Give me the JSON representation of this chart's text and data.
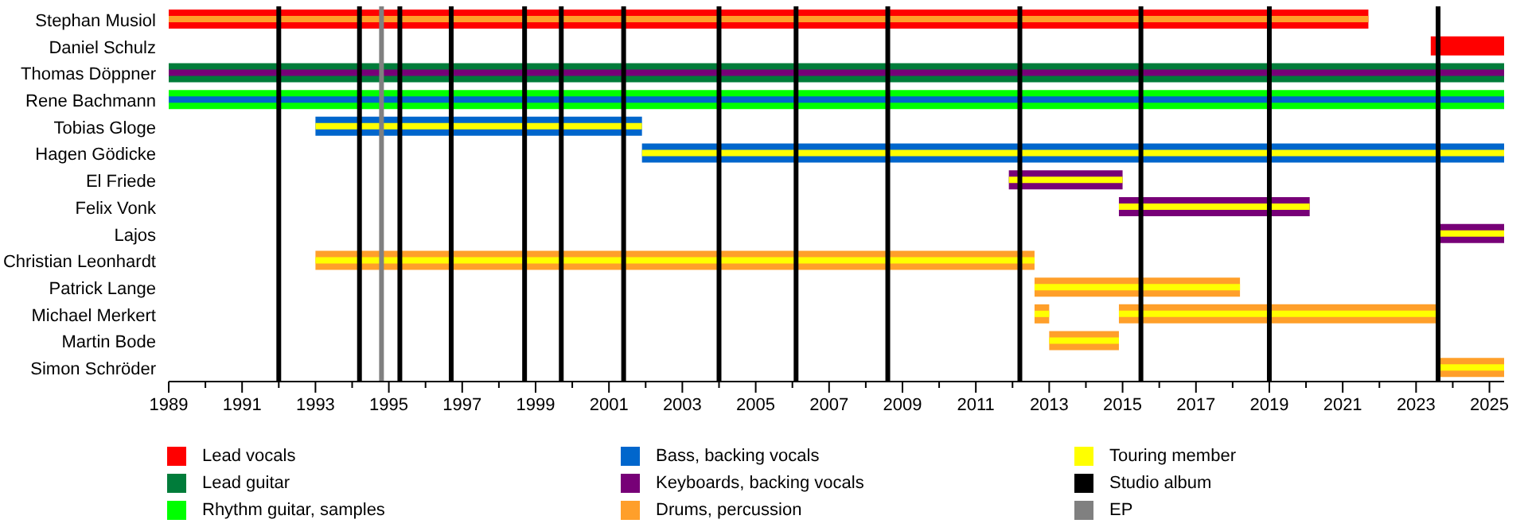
{
  "chart_data": {
    "type": "bar",
    "orientation": "horizontal",
    "categories": [
      "Stephan Musiol",
      "Daniel Schulz",
      "Thomas Döppner",
      "Rene Bachmann",
      "Tobias Gloge",
      "Hagen Gödicke",
      "El Friede",
      "Felix Vonk",
      "Lajos",
      "Christian Leonhardt",
      "Patrick Lange",
      "Michael Merkert",
      "Martin Bode",
      "Simon Schröder"
    ],
    "xlim": [
      1989,
      2025.4
    ],
    "xticks": [
      1989,
      {
        "value": 1990,
        "label": null
      },
      1991,
      {
        "value": 1992,
        "label": null
      },
      1993,
      {
        "value": 1994,
        "label": null
      },
      1995,
      {
        "value": 1996,
        "label": null
      },
      1997,
      {
        "value": 1998,
        "label": null
      },
      1999,
      {
        "value": 2000,
        "label": null
      },
      2001,
      {
        "value": 2002,
        "label": null
      },
      2003,
      {
        "value": 2004,
        "label": null
      },
      2005,
      {
        "value": 2006,
        "label": null
      },
      2007,
      {
        "value": 2008,
        "label": null
      },
      2009,
      {
        "value": 2010,
        "label": null
      },
      2011,
      {
        "value": 2012,
        "label": null
      },
      2013,
      {
        "value": 2014,
        "label": null
      },
      2015,
      {
        "value": 2016,
        "label": null
      },
      2017,
      {
        "value": 2018,
        "label": null
      },
      2019,
      {
        "value": 2020,
        "label": null
      },
      2021,
      {
        "value": 2022,
        "label": null
      },
      2023,
      {
        "value": 2024,
        "label": null
      },
      2025
    ],
    "series": [
      {
        "name": "Lead vocals",
        "color": "#ff0000",
        "base": [
          1989,
          2023.4,
          null,
          null,
          null,
          null,
          null,
          null,
          null,
          null,
          null,
          null,
          null,
          null
        ],
        "values": [
          32.7,
          2.0,
          null,
          null,
          null,
          null,
          null,
          null,
          null,
          null,
          null,
          null,
          null,
          null
        ]
      },
      {
        "name": "Lead guitar",
        "color": "#007c3a",
        "base": [
          null,
          null,
          1989,
          null,
          null,
          null,
          null,
          null,
          null,
          null,
          null,
          null,
          null,
          null
        ],
        "values": [
          null,
          null,
          36.4,
          null,
          null,
          null,
          null,
          null,
          null,
          null,
          null,
          null,
          null,
          null
        ]
      },
      {
        "name": "Rhythm guitar, samples",
        "color": "#00ff00",
        "base": [
          null,
          null,
          null,
          1989,
          null,
          null,
          null,
          null,
          null,
          null,
          null,
          null,
          null,
          null
        ],
        "values": [
          null,
          null,
          null,
          36.4,
          null,
          null,
          null,
          null,
          null,
          null,
          null,
          null,
          null,
          null
        ]
      },
      {
        "name": "Bass, backing vocals",
        "color": "#0066cc",
        "base": [
          null,
          null,
          null,
          null,
          1993,
          2001.9,
          null,
          null,
          null,
          null,
          null,
          null,
          null,
          null
        ],
        "values": [
          null,
          null,
          null,
          null,
          8.9,
          23.5,
          null,
          null,
          null,
          null,
          null,
          null,
          null,
          null
        ]
      },
      {
        "name": "Keyboards, backing vocals",
        "color": "#770077",
        "base": [
          null,
          null,
          null,
          null,
          null,
          null,
          2011.9,
          2014.9,
          2023.6,
          null,
          null,
          null,
          null,
          null
        ],
        "values": [
          null,
          null,
          null,
          null,
          null,
          null,
          3.1,
          5.2,
          1.8,
          null,
          null,
          null,
          null,
          null
        ]
      },
      {
        "name": "Drums, percussion",
        "color": "#ff9f2a",
        "base": [
          null,
          null,
          null,
          null,
          null,
          null,
          null,
          null,
          null,
          1993,
          2012.6,
          2012.6,
          2013,
          2023.6
        ],
        "values": [
          null,
          null,
          null,
          null,
          null,
          null,
          null,
          null,
          null,
          19.6,
          5.6,
          0.4,
          1.9,
          1.8
        ]
      },
      {
        "color": "#ff9f2a",
        "base": [
          null,
          null,
          null,
          null,
          null,
          null,
          null,
          null,
          null,
          null,
          null,
          2014.9,
          null,
          null
        ],
        "values": [
          null,
          null,
          null,
          null,
          null,
          null,
          null,
          null,
          null,
          null,
          null,
          8.7,
          null,
          null
        ]
      },
      {
        "name": "Touring member",
        "color": "#ffff00",
        "base": [
          null,
          null,
          null,
          null,
          1993,
          2001.9,
          2011.9,
          2014.9,
          2023.6,
          1993,
          2012.6,
          2012.6,
          2013,
          2023.6
        ],
        "values": [
          null,
          null,
          null,
          null,
          8.9,
          23.5,
          3.1,
          5.2,
          1.8,
          19.6,
          5.6,
          0.4,
          1.9,
          1.8
        ]
      },
      {
        "color": "#ffff00",
        "base": [
          null,
          null,
          null,
          null,
          null,
          null,
          null,
          null,
          null,
          null,
          null,
          2014.9,
          null,
          null
        ],
        "values": [
          null,
          null,
          null,
          null,
          null,
          null,
          null,
          null,
          null,
          null,
          null,
          8.7,
          null,
          null
        ]
      },
      {
        "color": "#ff9f2a",
        "base": [
          1989,
          null,
          null,
          null,
          null,
          null,
          null,
          null,
          null,
          null,
          null,
          null,
          null,
          null
        ],
        "values": [
          32.7,
          null,
          null,
          null,
          null,
          null,
          null,
          null,
          null,
          null,
          null,
          null,
          null,
          null
        ]
      },
      {
        "color": "#770077",
        "base": [
          null,
          null,
          1989,
          null,
          null,
          null,
          null,
          null,
          null,
          null,
          null,
          null,
          null,
          null
        ],
        "values": [
          null,
          null,
          36.4,
          null,
          null,
          null,
          null,
          null,
          null,
          null,
          null,
          null,
          null,
          null
        ]
      },
      {
        "color": "#0066cc",
        "base": [
          null,
          null,
          null,
          1989,
          null,
          null,
          null,
          null,
          null,
          null,
          null,
          null,
          null,
          null
        ],
        "values": [
          null,
          null,
          null,
          36.4,
          null,
          null,
          null,
          null,
          null,
          null,
          null,
          null,
          null,
          null
        ]
      }
    ],
    "ref_lines": [
      {
        "axis": "x",
        "value": 1992.0,
        "label": "Studio album",
        "color": "#000000"
      },
      {
        "axis": "x",
        "value": 1994.2,
        "color": "#000000"
      },
      {
        "axis": "x",
        "value": 1994.8,
        "label": "EP",
        "color": "#808080"
      },
      {
        "axis": "x",
        "value": 1995.3,
        "color": "#000000"
      },
      {
        "axis": "x",
        "value": 1996.7,
        "color": "#000000"
      },
      {
        "axis": "x",
        "value": 1998.7,
        "color": "#000000"
      },
      {
        "axis": "x",
        "value": 1999.7,
        "color": "#000000"
      },
      {
        "axis": "x",
        "value": 2001.4,
        "color": "#000000"
      },
      {
        "axis": "x",
        "value": 2004.0,
        "color": "#000000"
      },
      {
        "axis": "x",
        "value": 2006.1,
        "color": "#000000"
      },
      {
        "axis": "x",
        "value": 2008.6,
        "color": "#000000"
      },
      {
        "axis": "x",
        "value": 2012.2,
        "color": "#000000"
      },
      {
        "axis": "x",
        "value": 2015.5,
        "color": "#000000"
      },
      {
        "axis": "x",
        "value": 2019.0,
        "color": "#000000"
      },
      {
        "axis": "x",
        "value": 2023.6,
        "color": "#000000"
      }
    ],
    "legend": "bottom"
  }
}
